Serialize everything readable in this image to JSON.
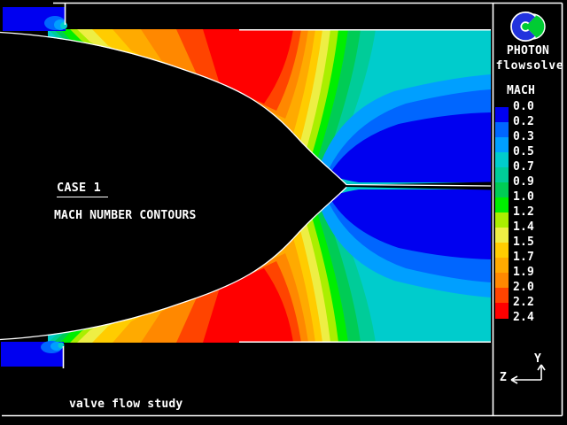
{
  "app": {
    "name": "PHOTON",
    "product": "flowsolve"
  },
  "plot": {
    "case_label": "CASE 1",
    "title": "MACH NUMBER CONTOURS",
    "caption": "valve flow study"
  },
  "legend": {
    "title": "MACH",
    "labels": [
      "0.0",
      "0.2",
      "0.3",
      "0.5",
      "0.7",
      "0.9",
      "1.0",
      "1.2",
      "1.4",
      "1.5",
      "1.7",
      "1.9",
      "2.0",
      "2.2",
      "2.4"
    ],
    "colors": [
      "#0000F0",
      "#0066FF",
      "#009FFF",
      "#00CCCC",
      "#00CC99",
      "#00CC55",
      "#00EE00",
      "#AAEE00",
      "#EEEE44",
      "#FFCC00",
      "#FFAA00",
      "#FF8800",
      "#FF4400",
      "#FF0000"
    ]
  },
  "axes": {
    "up_axis": "Y",
    "left_axis": "Z"
  },
  "colors": {
    "background": "#000000",
    "frame": "#FFFFFF",
    "text": "#FFFFFF",
    "field_base": "#00CCCC",
    "logo_green": "#00CC33",
    "logo_blue": "#2233DD"
  },
  "chart_data": {
    "type": "heatmap",
    "subtitle": "CASE 1",
    "title": "MACH NUMBER CONTOURS",
    "caption": "valve flow study",
    "variable": "MACH",
    "legend_position": "right",
    "levels": [
      0.0,
      0.2,
      0.3,
      0.5,
      0.7,
      0.9,
      1.0,
      1.2,
      1.4,
      1.5,
      1.7,
      1.9,
      2.0,
      2.2,
      2.4
    ],
    "band_colors": [
      "#0000F0",
      "#0066FF",
      "#009FFF",
      "#00CCCC",
      "#00CC99",
      "#00CC55",
      "#00EE00",
      "#AAEE00",
      "#EEEE44",
      "#FFCC00",
      "#FFAA00",
      "#FF8800",
      "#FF4400",
      "#FF0000"
    ],
    "orientation_axes": {
      "up": "Y",
      "left": "Z"
    },
    "description": "Mach number contours of flow past a poppet valve: low Mach (blue, 0.0-0.3) in the narrow inlet channels at upper/lower left, accelerating through green/yellow/orange to a red supersonic maximum (Mach 2.2-2.4) in the diverging gap along the black valve body, relaxing back through cyan (Mach 0.5-0.7) downstream, with low-Mach blue recirculation lobes (0.0-0.2) above and below the centerline wake behind the body tip."
  }
}
